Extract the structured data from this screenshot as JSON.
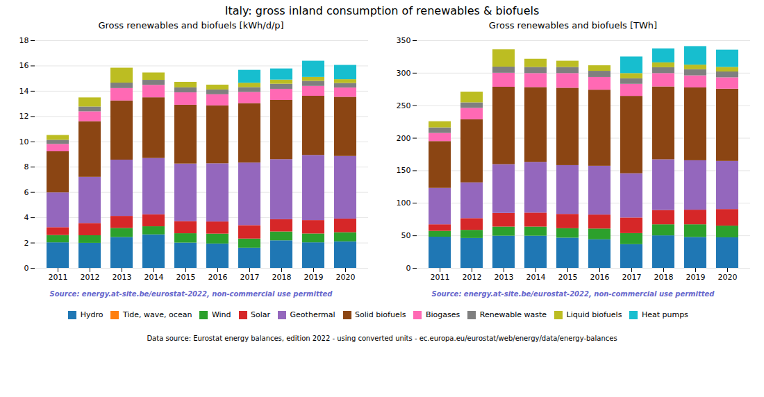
{
  "title": "Italy: gross inland consumption of renewables & biofuels",
  "annotations": [
    {
      "text": "Data source: Eurostat energy balances, edition 2022 - using converted units - ec.europa.eu/eurostat/web/energy/data/energy-balances"
    }
  ],
  "chart_data": [
    {
      "type": "bar",
      "stacked": true,
      "grid": true,
      "legend": "bottom",
      "title": "Gross renewables and biofuels [kWh/d/p]",
      "annotations": [
        {
          "text": "Source: energy.at-site.be/eurostat-2022, non-commercial use permitted",
          "color": "#6666cc"
        }
      ],
      "categories": [
        "2011",
        "2012",
        "2013",
        "2014",
        "2015",
        "2016",
        "2017",
        "2018",
        "2019",
        "2020"
      ],
      "ylim": [
        0,
        18
      ],
      "yticks": [
        0,
        2,
        4,
        6,
        8,
        10,
        12,
        14,
        16,
        18
      ],
      "series": [
        {
          "name": "Hydro",
          "color": "#1f77b4",
          "values": [
            2.02,
            1.98,
            2.44,
            2.65,
            2.0,
            1.93,
            1.6,
            2.18,
            2.02,
            2.1
          ]
        },
        {
          "name": "Tide, wave, ocean",
          "color": "#ff7f0e",
          "values": [
            0.0,
            0.0,
            0.0,
            0.0,
            0.0,
            0.0,
            0.0,
            0.0,
            0.0,
            0.0
          ]
        },
        {
          "name": "Wind",
          "color": "#2ca02c",
          "values": [
            0.58,
            0.6,
            0.72,
            0.64,
            0.74,
            0.78,
            0.72,
            0.7,
            0.7,
            0.72
          ]
        },
        {
          "name": "Solar",
          "color": "#d62728",
          "values": [
            0.62,
            0.97,
            0.95,
            0.95,
            0.96,
            0.96,
            1.06,
            0.97,
            1.06,
            1.08
          ]
        },
        {
          "name": "Geothermal",
          "color": "#9467bd",
          "values": [
            2.75,
            3.65,
            4.45,
            4.45,
            4.55,
            4.6,
            4.95,
            4.75,
            5.15,
            4.95
          ]
        },
        {
          "name": "Solid biofuels",
          "color": "#8B4513",
          "values": [
            3.25,
            4.4,
            4.68,
            4.8,
            4.65,
            4.58,
            4.7,
            4.68,
            4.68,
            4.68
          ]
        },
        {
          "name": "Biogases",
          "color": "#ff69b4",
          "values": [
            0.58,
            0.78,
            0.98,
            0.98,
            0.98,
            0.88,
            0.88,
            0.88,
            0.78,
            0.73
          ]
        },
        {
          "name": "Renewable waste",
          "color": "#7f7f7f",
          "values": [
            0.33,
            0.38,
            0.43,
            0.4,
            0.4,
            0.38,
            0.38,
            0.4,
            0.4,
            0.36
          ]
        },
        {
          "name": "Liquid biofuels",
          "color": "#bcbd22",
          "values": [
            0.38,
            0.72,
            1.18,
            0.58,
            0.43,
            0.38,
            0.35,
            0.33,
            0.31,
            0.3
          ]
        },
        {
          "name": "Heat pumps",
          "color": "#17becf",
          "values": [
            0.0,
            0.0,
            0.0,
            0.0,
            0.0,
            0.0,
            1.02,
            0.88,
            1.28,
            1.13
          ]
        }
      ]
    },
    {
      "type": "bar",
      "stacked": true,
      "grid": true,
      "legend": "bottom",
      "title": "Gross renewables and biofuels [TWh]",
      "annotations": [
        {
          "text": "Source: energy.at-site.be/eurostat-2022, non-commercial use permitted",
          "color": "#6666cc"
        }
      ],
      "categories": [
        "2011",
        "2012",
        "2013",
        "2014",
        "2015",
        "2016",
        "2017",
        "2018",
        "2019",
        "2020"
      ],
      "ylim": [
        0,
        350
      ],
      "yticks": [
        0,
        50,
        100,
        150,
        200,
        250,
        300,
        350
      ],
      "series": [
        {
          "name": "Hydro",
          "color": "#1f77b4",
          "values": [
            48.0,
            46.0,
            49.5,
            49.5,
            46.5,
            44.0,
            36.5,
            50.0,
            47.5,
            47.0
          ]
        },
        {
          "name": "Tide, wave, ocean",
          "color": "#ff7f0e",
          "values": [
            0.0,
            0.0,
            0.0,
            0.0,
            0.0,
            0.0,
            0.0,
            0.0,
            0.0,
            0.0
          ]
        },
        {
          "name": "Wind",
          "color": "#2ca02c",
          "values": [
            9.0,
            12.5,
            14.0,
            14.0,
            14.5,
            16.5,
            17.0,
            17.0,
            19.5,
            18.0
          ]
        },
        {
          "name": "Solar",
          "color": "#d62728",
          "values": [
            10.0,
            18.0,
            21.0,
            21.5,
            22.0,
            21.5,
            24.0,
            22.0,
            22.5,
            25.5
          ]
        },
        {
          "name": "Geothermal",
          "color": "#9467bd",
          "values": [
            56.0,
            55.0,
            75.0,
            78.0,
            75.0,
            75.0,
            68.0,
            78.0,
            76.0,
            74.0
          ]
        },
        {
          "name": "Solid biofuels",
          "color": "#8B4513",
          "values": [
            72.0,
            97.0,
            119.0,
            115.0,
            119.0,
            117.0,
            119.0,
            112.0,
            112.0,
            111.0
          ]
        },
        {
          "name": "Biogases",
          "color": "#ff69b4",
          "values": [
            12.5,
            17.5,
            21.5,
            21.5,
            22.5,
            19.5,
            18.5,
            20.5,
            18.5,
            17.5
          ]
        },
        {
          "name": "Renewable waste",
          "color": "#7f7f7f",
          "values": [
            8.5,
            8.5,
            9.5,
            9.5,
            9.5,
            9.5,
            8.5,
            9.0,
            9.5,
            9.0
          ]
        },
        {
          "name": "Liquid biofuels",
          "color": "#bcbd22",
          "values": [
            9.5,
            16.5,
            26.5,
            12.5,
            9.5,
            8.5,
            8.0,
            7.5,
            7.0,
            7.0
          ]
        },
        {
          "name": "Heat pumps",
          "color": "#17becf",
          "values": [
            0.0,
            0.0,
            0.0,
            0.0,
            0.0,
            0.0,
            25.5,
            21.5,
            28.5,
            26.5
          ]
        }
      ]
    }
  ]
}
